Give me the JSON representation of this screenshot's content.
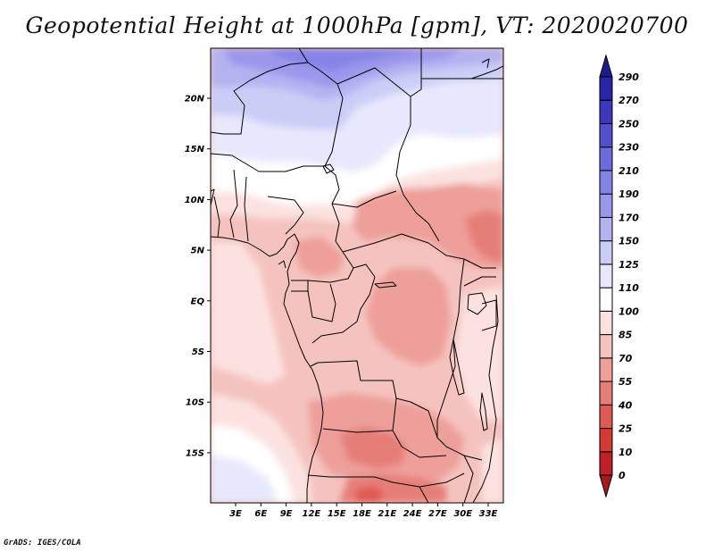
{
  "title": "Geopotential Height at 1000hPa [gpm], VT: 2020020700",
  "credit": "GrADS: IGES/COLA",
  "lat_labels": [
    "20N",
    "15N",
    "10N",
    "5N",
    "EQ",
    "5S",
    "10S",
    "15S"
  ],
  "lon_labels": [
    "3E",
    "6E",
    "9E",
    "12E",
    "15E",
    "18E",
    "21E",
    "24E",
    "27E",
    "30E",
    "33E"
  ],
  "colorbar": {
    "levels": [
      "0",
      "10",
      "25",
      "40",
      "55",
      "70",
      "85",
      "100",
      "110",
      "125",
      "150",
      "170",
      "190",
      "210",
      "230",
      "250",
      "270",
      "290"
    ],
    "colors": [
      "#a51a1d",
      "#bd2026",
      "#d33a35",
      "#df5a52",
      "#e67e78",
      "#ee9f9a",
      "#f5c3bf",
      "#fbe2e0",
      "#ffffff",
      "#e7e8fd",
      "#cbcdf7",
      "#b4b3f2",
      "#9b98ec",
      "#8583e6",
      "#6c6bdc",
      "#5550ce",
      "#3f37bb",
      "#2a25a6",
      "#1d1c8e"
    ]
  },
  "map": {
    "region": "Central Africa",
    "units": "gpm",
    "lat_range": [
      -20,
      25
    ],
    "lon_range": [
      0,
      35
    ]
  }
}
